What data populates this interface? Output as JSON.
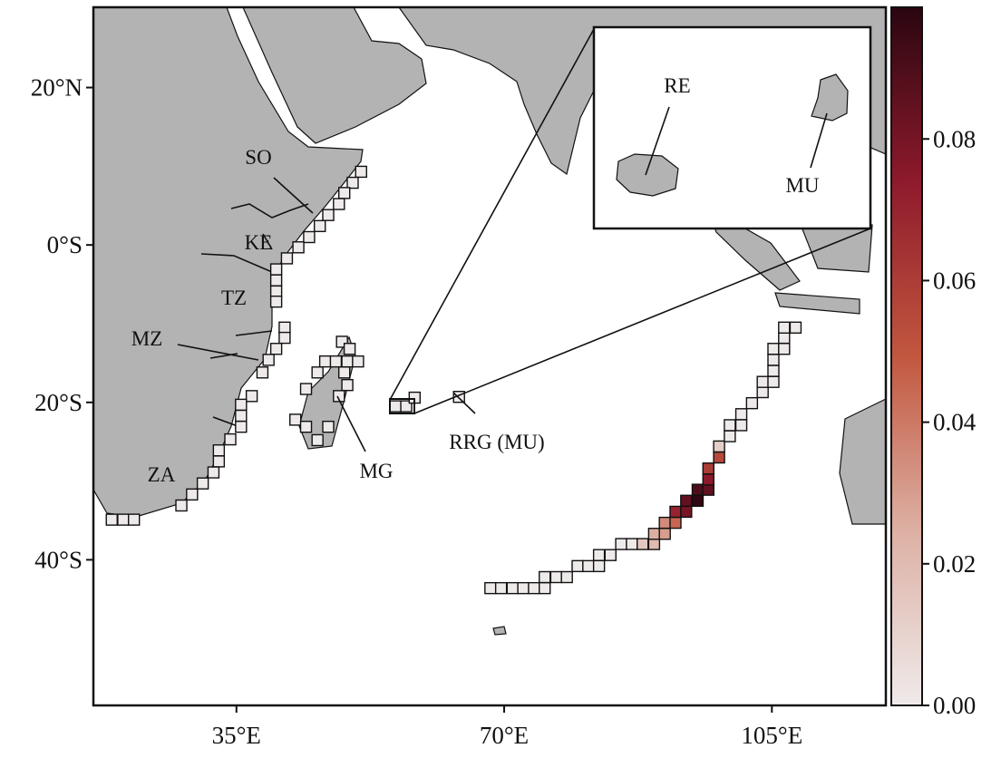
{
  "map": {
    "xlim": [
      16.3,
      119.9
    ],
    "ylim": [
      -58.5,
      30.2
    ],
    "xticks": [
      {
        "value": 35,
        "label": "35°E"
      },
      {
        "value": 70,
        "label": "70°E"
      },
      {
        "value": 105,
        "label": "105°E"
      }
    ],
    "yticks": [
      {
        "value": 20,
        "label": "20°N"
      },
      {
        "value": 0,
        "label": "0°S"
      },
      {
        "value": -20,
        "label": "20°S"
      },
      {
        "value": -40,
        "label": "40°S"
      }
    ],
    "colorbar": {
      "lim": [
        0,
        0.0986
      ],
      "ticks": [
        {
          "value": 0,
          "label": "0.00"
        },
        {
          "value": 0.02,
          "label": "0.02"
        },
        {
          "value": 0.04,
          "label": "0.04"
        },
        {
          "value": 0.06,
          "label": "0.06"
        },
        {
          "value": 0.08,
          "label": "0.08"
        }
      ],
      "colors": [
        "#efeaea",
        "#ddb0a4",
        "#c2573f",
        "#8e1a2c",
        "#2a0610"
      ]
    },
    "labels": {
      "so": "SO",
      "ke": "KE",
      "tz": "TZ",
      "mz": "MZ",
      "za": "ZA",
      "mg": "MG",
      "rrg": "RRG (MU)",
      "re": "RE",
      "mu": "MU"
    },
    "cells": [
      [
        68.2,
        -43.6,
        0
      ],
      [
        69.6,
        -43.6,
        0
      ],
      [
        71.1,
        -43.6,
        0
      ],
      [
        72.5,
        -43.6,
        0
      ],
      [
        73.9,
        -43.6,
        0
      ],
      [
        75.3,
        -43.6,
        0
      ],
      [
        75.3,
        -42.2,
        0
      ],
      [
        76.8,
        -42.2,
        0
      ],
      [
        78.2,
        -42.2,
        0
      ],
      [
        79.6,
        -40.8,
        0
      ],
      [
        81.0,
        -40.8,
        0
      ],
      [
        82.4,
        -40.8,
        0
      ],
      [
        82.4,
        -39.4,
        0
      ],
      [
        83.9,
        -39.4,
        0
      ],
      [
        85.3,
        -38.0,
        0
      ],
      [
        86.7,
        -38.0,
        0
      ],
      [
        88.1,
        -38.0,
        0.015
      ],
      [
        89.6,
        -38.0,
        0.02
      ],
      [
        89.6,
        -36.7,
        0.025
      ],
      [
        91.0,
        -36.7,
        0.03
      ],
      [
        91.0,
        -35.3,
        0.035
      ],
      [
        92.4,
        -35.3,
        0.045
      ],
      [
        92.4,
        -33.9,
        0.07
      ],
      [
        93.8,
        -33.9,
        0.08
      ],
      [
        93.8,
        -32.5,
        0.085
      ],
      [
        95.3,
        -32.5,
        0.097
      ],
      [
        95.3,
        -31.1,
        0.09
      ],
      [
        96.7,
        -31.1,
        0.085
      ],
      [
        96.7,
        -29.8,
        0.075
      ],
      [
        96.7,
        -28.4,
        0.06
      ],
      [
        98.1,
        -27.0,
        0.055
      ],
      [
        98.1,
        -25.6,
        0.012
      ],
      [
        99.5,
        -24.3,
        0
      ],
      [
        99.5,
        -22.9,
        0
      ],
      [
        101.0,
        -22.9,
        0
      ],
      [
        101.0,
        -21.5,
        0
      ],
      [
        102.4,
        -20.1,
        0
      ],
      [
        103.8,
        -18.7,
        0
      ],
      [
        103.8,
        -17.4,
        0
      ],
      [
        105.2,
        -17.4,
        0
      ],
      [
        105.2,
        -16.0,
        0
      ],
      [
        105.2,
        -14.6,
        0
      ],
      [
        105.2,
        -13.2,
        0
      ],
      [
        106.6,
        -13.2,
        0
      ],
      [
        106.6,
        -11.8,
        0
      ],
      [
        106.6,
        -10.5,
        0
      ],
      [
        108.1,
        -10.5,
        0
      ],
      [
        51.3,
        9.3,
        0
      ],
      [
        50.2,
        7.9,
        0
      ],
      [
        49.1,
        6.6,
        0
      ],
      [
        48.4,
        5.2,
        0
      ],
      [
        47.0,
        3.8,
        0
      ],
      [
        45.9,
        2.4,
        0
      ],
      [
        44.5,
        1.0,
        0
      ],
      [
        43.1,
        -0.3,
        0
      ],
      [
        41.6,
        -1.7,
        0
      ],
      [
        40.2,
        -3.1,
        0
      ],
      [
        40.2,
        -4.5,
        0
      ],
      [
        40.2,
        -5.9,
        0
      ],
      [
        40.2,
        -7.2,
        0
      ],
      [
        41.3,
        -10.5,
        0
      ],
      [
        41.3,
        -11.8,
        0
      ],
      [
        40.2,
        -13.2,
        0
      ],
      [
        39.2,
        -14.6,
        0
      ],
      [
        38.4,
        -16.2,
        0
      ],
      [
        37.0,
        -19.2,
        0
      ],
      [
        35.6,
        -20.3,
        0
      ],
      [
        35.6,
        -21.7,
        0
      ],
      [
        35.6,
        -23.1,
        0
      ],
      [
        34.2,
        -24.7,
        0
      ],
      [
        32.7,
        -26.1,
        0
      ],
      [
        32.7,
        -27.5,
        0
      ],
      [
        32.0,
        -28.9,
        0
      ],
      [
        30.6,
        -30.3,
        0
      ],
      [
        29.2,
        -31.7,
        0
      ],
      [
        27.8,
        -33.1,
        0
      ],
      [
        18.7,
        -34.9,
        0
      ],
      [
        20.2,
        -34.9,
        0
      ],
      [
        21.6,
        -34.9,
        0
      ],
      [
        48.8,
        -12.3,
        0
      ],
      [
        49.8,
        -13.2,
        0
      ],
      [
        46.6,
        -14.8,
        0
      ],
      [
        48.0,
        -14.8,
        0
      ],
      [
        49.5,
        -14.8,
        0
      ],
      [
        50.9,
        -14.8,
        0
      ],
      [
        49.1,
        -16.2,
        0
      ],
      [
        45.6,
        -16.2,
        0
      ],
      [
        44.1,
        -18.3,
        0
      ],
      [
        49.5,
        -17.8,
        0
      ],
      [
        48.4,
        -19.2,
        0
      ],
      [
        42.7,
        -22.2,
        0
      ],
      [
        44.1,
        -23.1,
        0
      ],
      [
        45.6,
        -24.8,
        0
      ],
      [
        47.0,
        -23.1,
        0
      ],
      [
        55.8,
        -20.5,
        0
      ],
      [
        57.2,
        -20.5,
        0
      ],
      [
        58.3,
        -19.4,
        0
      ],
      [
        64.1,
        -19.3,
        0
      ]
    ]
  }
}
